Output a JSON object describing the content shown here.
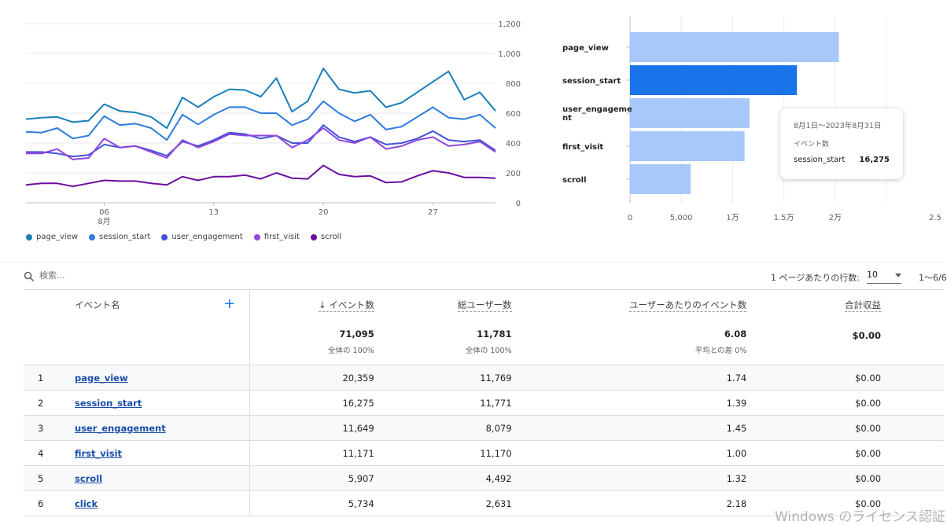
{
  "line_chart": {
    "x_ticks": [
      {
        "day": 6,
        "label": "06",
        "sub": "8月"
      },
      {
        "day": 13,
        "label": "13",
        "sub": ""
      },
      {
        "day": 20,
        "label": "20",
        "sub": ""
      },
      {
        "day": 27,
        "label": "27",
        "sub": ""
      }
    ],
    "y_ticks": [
      "0",
      "200",
      "400",
      "600",
      "800",
      "1,000",
      "1,200"
    ]
  },
  "bar_chart": {
    "x_ticks": [
      "0",
      "5,000",
      "1万",
      "1.5万",
      "2万",
      "2.5"
    ]
  },
  "chart_data": [
    {
      "type": "line",
      "x": [
        1,
        2,
        3,
        4,
        5,
        6,
        7,
        8,
        9,
        10,
        11,
        12,
        13,
        14,
        15,
        16,
        17,
        18,
        19,
        20,
        21,
        22,
        23,
        24,
        25,
        26,
        27,
        28,
        29,
        30,
        31
      ],
      "ylim": [
        0,
        1200
      ],
      "series": [
        {
          "name": "page_view",
          "color": "#1a7fb8",
          "values": [
            560,
            570,
            575,
            540,
            550,
            660,
            615,
            605,
            575,
            500,
            705,
            640,
            710,
            760,
            755,
            710,
            835,
            610,
            680,
            900,
            760,
            735,
            750,
            640,
            670,
            740,
            810,
            880,
            690,
            740,
            615
          ]
        },
        {
          "name": "session_start",
          "color": "#2d7be0",
          "values": [
            475,
            470,
            500,
            430,
            450,
            580,
            520,
            530,
            500,
            420,
            590,
            525,
            590,
            640,
            640,
            600,
            600,
            520,
            560,
            680,
            600,
            545,
            590,
            490,
            510,
            575,
            640,
            570,
            560,
            590,
            500
          ]
        },
        {
          "name": "user_engagement",
          "color": "#4353d8",
          "values": [
            340,
            340,
            330,
            310,
            320,
            390,
            370,
            380,
            350,
            315,
            410,
            380,
            420,
            470,
            460,
            430,
            450,
            400,
            400,
            520,
            440,
            410,
            440,
            390,
            400,
            430,
            480,
            420,
            410,
            420,
            350
          ]
        },
        {
          "name": "first_visit",
          "color": "#9146dc",
          "values": [
            330,
            330,
            360,
            290,
            300,
            430,
            370,
            380,
            340,
            300,
            420,
            370,
            410,
            460,
            450,
            450,
            450,
            370,
            420,
            500,
            420,
            400,
            440,
            360,
            380,
            420,
            440,
            380,
            390,
            410,
            340
          ]
        },
        {
          "name": "scroll",
          "color": "#6a0fa0",
          "values": [
            120,
            130,
            130,
            110,
            130,
            150,
            145,
            145,
            130,
            120,
            175,
            150,
            175,
            175,
            185,
            160,
            200,
            165,
            160,
            250,
            190,
            175,
            180,
            135,
            140,
            180,
            215,
            200,
            170,
            170,
            165
          ]
        }
      ]
    },
    {
      "type": "bar",
      "orientation": "horizontal",
      "categories": [
        "page_view",
        "session_start",
        "user_engagement",
        "first_visit",
        "scroll"
      ],
      "values": [
        20359,
        16275,
        11649,
        11171,
        5907
      ],
      "xlim": [
        0,
        25000
      ],
      "highlight": "session_start"
    }
  ],
  "legend": [
    {
      "label": "page_view",
      "color": "#1a7fb8"
    },
    {
      "label": "session_start",
      "color": "#2d7be0"
    },
    {
      "label": "user_engagement",
      "color": "#4353d8"
    },
    {
      "label": "first_visit",
      "color": "#9146dc"
    },
    {
      "label": "scroll",
      "color": "#6a0fa0"
    }
  ],
  "bar_labels": [
    "page_view",
    "session_start",
    "user_engageme\nnt",
    "first_visit",
    "scroll"
  ],
  "tooltip": {
    "date_range": "8月1日～2023年8月31日",
    "metric": "イベント数",
    "event": "session_start",
    "value": "16,275"
  },
  "search": {
    "placeholder": "検索..."
  },
  "pagination": {
    "rows_label": "1 ページあたりの行数:",
    "rows_value": "10",
    "range": "1～6/6"
  },
  "table": {
    "headers": {
      "event_name": "イベント名",
      "event_count": "↓ イベント数",
      "total_users": "総ユーザー数",
      "per_user": "ユーザーあたりのイベント数",
      "revenue": "合計収益"
    },
    "totals": {
      "event_count": "71,095",
      "event_count_sub": "全体の 100%",
      "total_users": "11,781",
      "total_users_sub": "全体の 100%",
      "per_user": "6.08",
      "per_user_sub": "平均との差 0%",
      "revenue": "$0.00"
    },
    "rows": [
      {
        "idx": "1",
        "name": "page_view",
        "count": "20,359",
        "users": "11,769",
        "per_user": "1.74",
        "revenue": "$0.00"
      },
      {
        "idx": "2",
        "name": "session_start",
        "count": "16,275",
        "users": "11,771",
        "per_user": "1.39",
        "revenue": "$0.00"
      },
      {
        "idx": "3",
        "name": "user_engagement",
        "count": "11,649",
        "users": "8,079",
        "per_user": "1.45",
        "revenue": "$0.00"
      },
      {
        "idx": "4",
        "name": "first_visit",
        "count": "11,171",
        "users": "11,170",
        "per_user": "1.00",
        "revenue": "$0.00"
      },
      {
        "idx": "5",
        "name": "scroll",
        "count": "5,907",
        "users": "4,492",
        "per_user": "1.32",
        "revenue": "$0.00"
      },
      {
        "idx": "6",
        "name": "click",
        "count": "5,734",
        "users": "2,631",
        "per_user": "2.18",
        "revenue": "$0.00"
      }
    ]
  },
  "watermark": "Windows のライセンス認証"
}
